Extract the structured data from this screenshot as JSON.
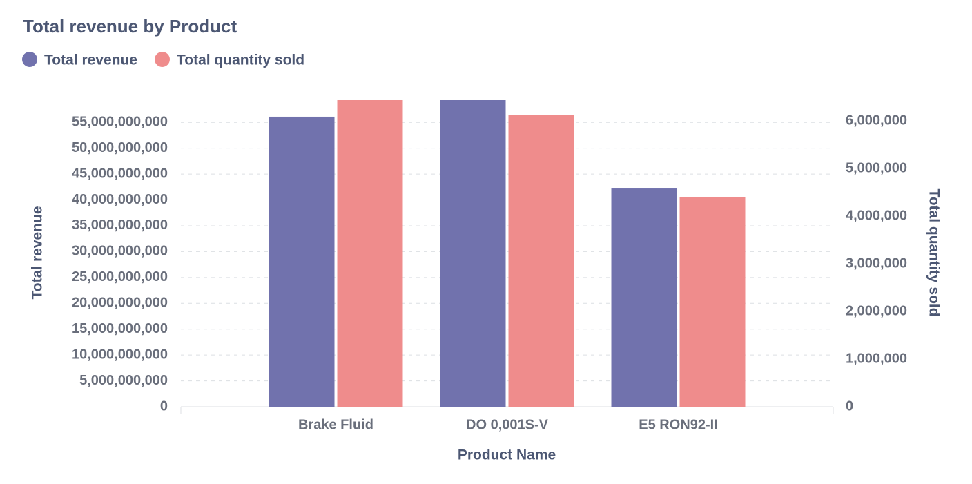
{
  "chart_data": {
    "type": "bar",
    "title": "Total revenue by Product",
    "x_label": "Product Name",
    "y_label": "Total revenue",
    "y2_label": "Total quantity sold",
    "categories": [
      "Brake Fluid",
      "DO 0,001S-V",
      "E5 RON92-II"
    ],
    "series": [
      {
        "name": "Total revenue",
        "color": "#7172ad",
        "values": [
          56100000000,
          59300000000,
          42200000000
        ]
      },
      {
        "name": "Total quantity sold",
        "color": "#ef8c8c",
        "axis": "y2",
        "values": [
          6435000,
          6116000,
          4406000
        ]
      }
    ],
    "ylim": [
      0,
      59300000000
    ],
    "yticks": [
      0,
      {
        "value": 5000000000,
        "label": "5,000,000,000"
      },
      {
        "value": 10000000000,
        "label": "10,000,000,000"
      },
      {
        "value": 15000000000,
        "label": "15,000,000,000"
      },
      {
        "value": 20000000000,
        "label": "20,000,000,000"
      },
      {
        "value": 25000000000,
        "label": "25,000,000,000"
      },
      {
        "value": 30000000000,
        "label": "30,000,000,000"
      },
      {
        "value": 35000000000,
        "label": "35,000,000,000"
      },
      {
        "value": 40000000000,
        "label": "40,000,000,000"
      },
      {
        "value": 45000000000,
        "label": "45,000,000,000"
      },
      {
        "value": 50000000000,
        "label": "50,000,000,000"
      },
      {
        "value": 55000000000,
        "label": "55,000,000,000"
      }
    ],
    "y2lim": [
      0,
      6435000
    ],
    "y2ticks": [
      0,
      {
        "value": 1000000,
        "label": "1,000,000"
      },
      {
        "value": 2000000,
        "label": "2,000,000"
      },
      {
        "value": 3000000,
        "label": "3,000,000"
      },
      {
        "value": 4000000,
        "label": "4,000,000"
      },
      {
        "value": 5000000,
        "label": "5,000,000"
      },
      {
        "value": 6000000,
        "label": "6,000,000"
      }
    ],
    "grid": true
  }
}
